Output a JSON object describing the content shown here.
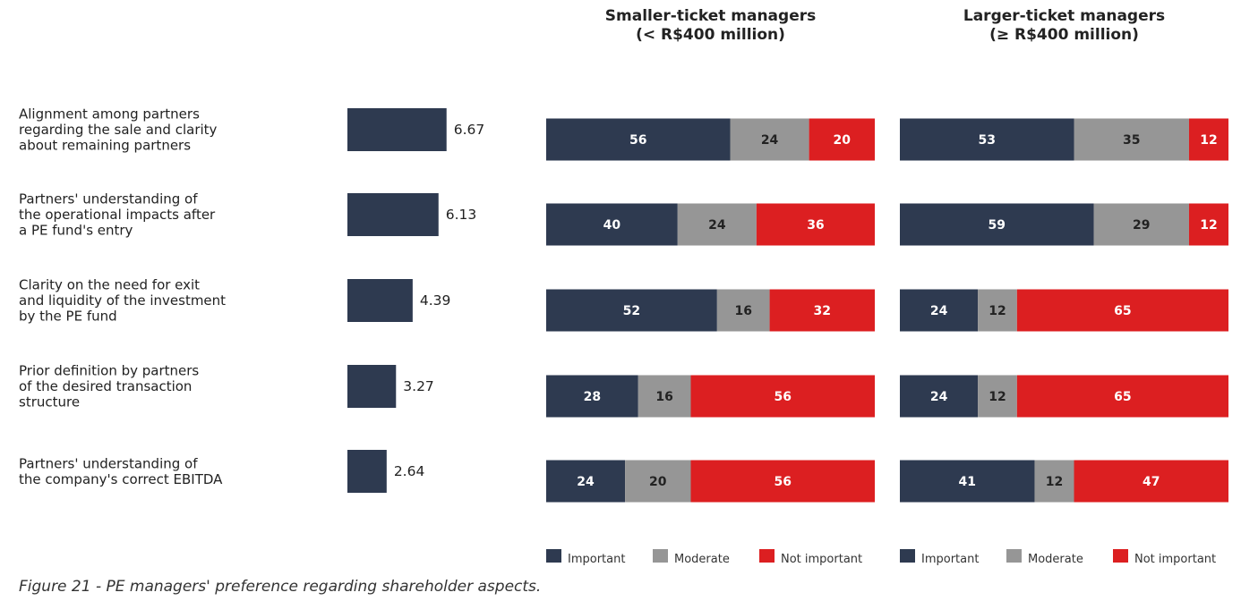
{
  "caption": "Figure 21 - PE managers' preference regarding shareholder aspects.",
  "colors": {
    "important": "#2e3a50",
    "moderate": "#969696",
    "not_important": "#dc1f21",
    "score_bar": "#2e3a50"
  },
  "chart_data": {
    "type": "bar",
    "categories": [
      [
        "Alignment among partners",
        "regarding the sale and clarity",
        "about remaining partners"
      ],
      [
        "Partners' understanding of",
        "the operational impacts after",
        "a PE fund's entry"
      ],
      [
        "Clarity on the need for exit",
        "and liquidity of the investment",
        "by the PE fund"
      ],
      [
        "Prior definition by partners",
        "of the desired transaction",
        "structure"
      ],
      [
        "Partners' understanding of",
        "the company's correct EBITDA"
      ]
    ],
    "scores": {
      "values": [
        6.67,
        6.13,
        4.39,
        3.27,
        2.64
      ],
      "labels": [
        "6.67",
        "6.13",
        "4.39",
        "3.27",
        "2.64"
      ],
      "xlim": [
        0,
        10
      ]
    },
    "panels": [
      {
        "title": [
          "Smaller-ticket managers",
          "(< R$400 million)"
        ],
        "series": [
          {
            "name": "Important",
            "values": [
              56,
              40,
              52,
              28,
              24
            ]
          },
          {
            "name": "Moderate",
            "values": [
              24,
              24,
              16,
              16,
              20
            ]
          },
          {
            "name": "Not important",
            "values": [
              20,
              36,
              32,
              56,
              56
            ]
          }
        ]
      },
      {
        "title": [
          "Larger-ticket managers",
          "(≥ R$400 million)"
        ],
        "series": [
          {
            "name": "Important",
            "values": [
              53,
              59,
              24,
              24,
              41
            ]
          },
          {
            "name": "Moderate",
            "values": [
              35,
              29,
              12,
              12,
              12
            ]
          },
          {
            "name": "Not important",
            "values": [
              12,
              12,
              65,
              65,
              47
            ]
          }
        ]
      }
    ],
    "legend_placement": "bottom",
    "grid": false
  }
}
